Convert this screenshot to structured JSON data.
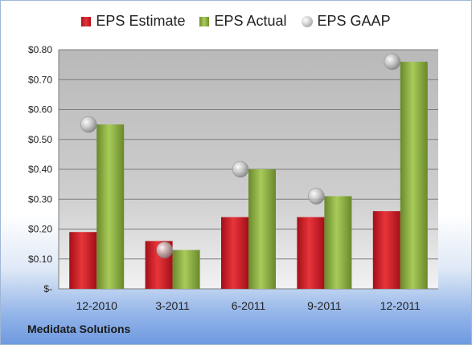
{
  "chart_data": {
    "type": "bar",
    "categories": [
      "12-2010",
      "3-2011",
      "6-2011",
      "9-2011",
      "12-2011"
    ],
    "series": [
      {
        "name": "EPS Estimate",
        "values": [
          0.19,
          0.16,
          0.24,
          0.24,
          0.26
        ],
        "color": "#d42a2f",
        "kind": "bar"
      },
      {
        "name": "EPS Actual",
        "values": [
          0.55,
          0.13,
          0.4,
          0.31,
          0.76
        ],
        "color": "#8db443",
        "kind": "bar"
      },
      {
        "name": "EPS GAAP",
        "values": [
          0.55,
          0.13,
          0.4,
          0.31,
          0.76
        ],
        "color": "#b5b5b5",
        "kind": "marker"
      }
    ],
    "ylim": [
      0,
      0.8
    ],
    "yticks": [
      {
        "value": 0.8,
        "label": "$0.80"
      },
      {
        "value": 0.7,
        "label": "$0.70"
      },
      {
        "value": 0.6,
        "label": "$0.60"
      },
      {
        "value": 0.5,
        "label": "$0.50"
      },
      {
        "value": 0.4,
        "label": "$0.40"
      },
      {
        "value": 0.3,
        "label": "$0.30"
      },
      {
        "value": 0.2,
        "label": "$0.20"
      },
      {
        "value": 0.1,
        "label": "$0.10"
      },
      {
        "value": 0.0,
        "label": "$-"
      }
    ],
    "grid": true,
    "legend": "top",
    "plot_background": "#c8c8c8"
  },
  "company": "Medidata Solutions"
}
